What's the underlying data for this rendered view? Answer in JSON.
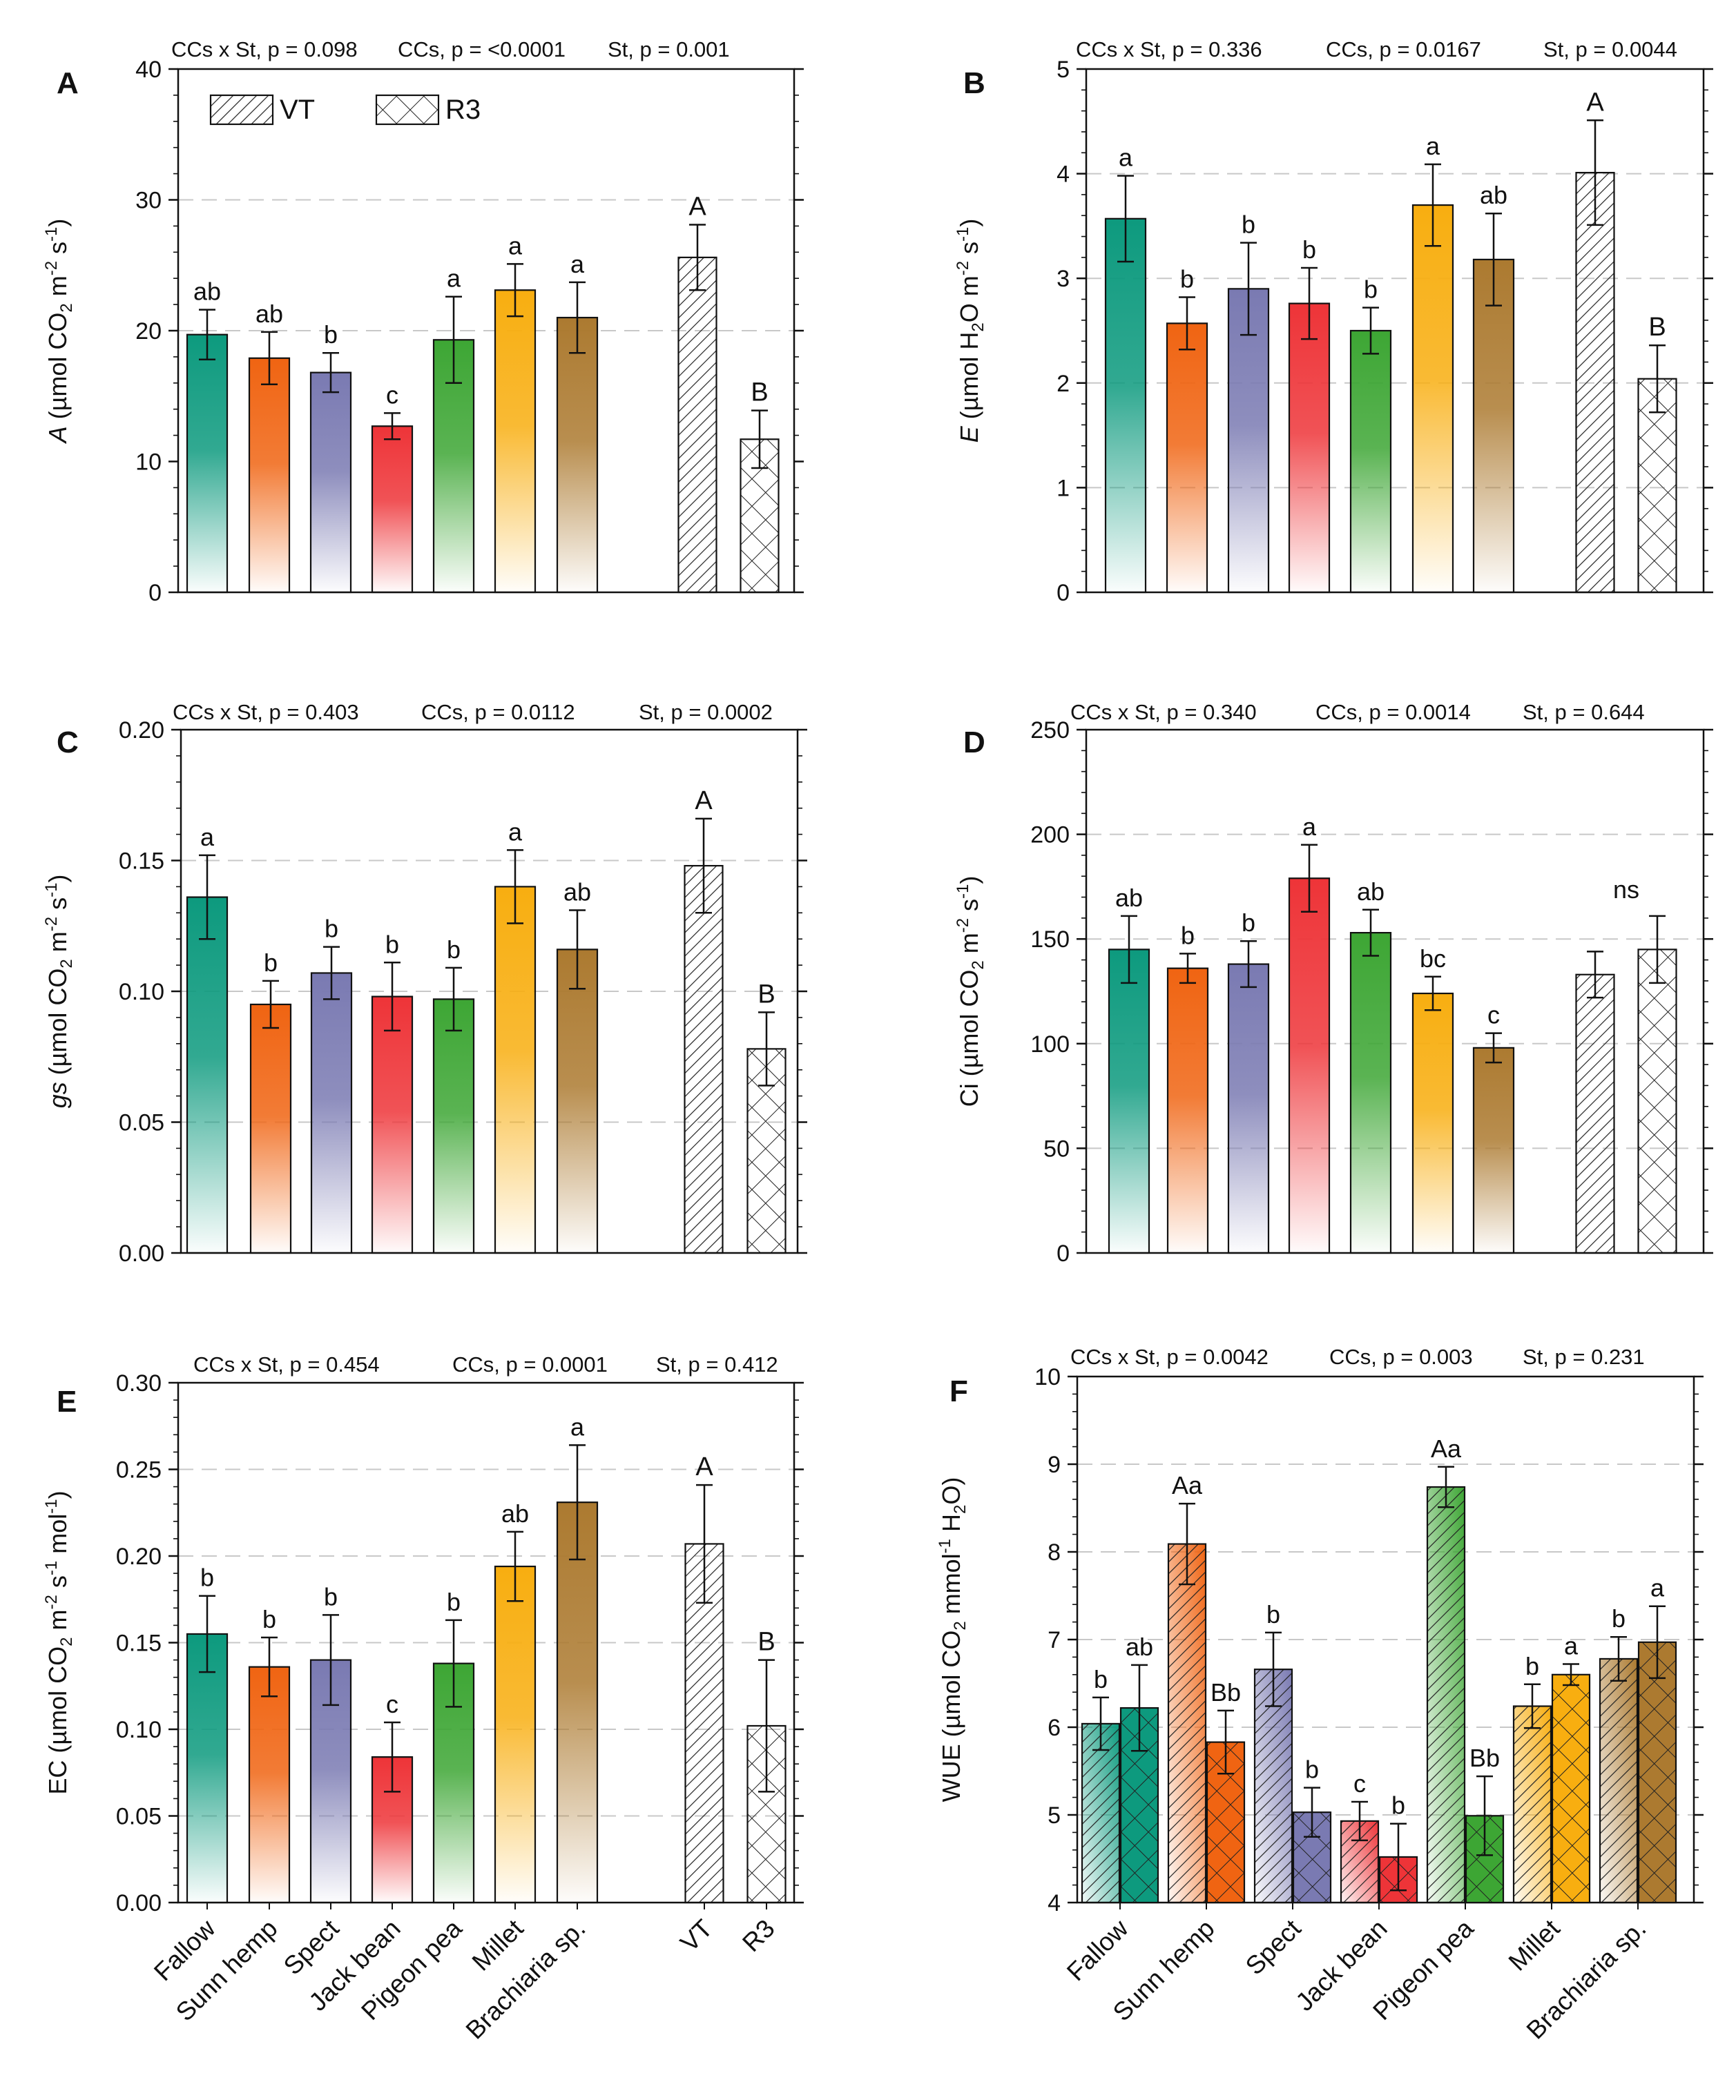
{
  "colors": {
    "Fallow": "#0d9a7e",
    "Sunn hemp": "#f06412",
    "Spect": "#7a7ab2",
    "Jack bean": "#ee3438",
    "Pigeon pea": "#3da634",
    "Millet": "#f8ae10",
    "Brachiaria sp.": "#ac7a30"
  },
  "chart_data": [
    {
      "panel": "A",
      "type": "bar",
      "stats": [
        "CCs x St, p = 0.098",
        "CCs, p = <0.0001",
        "St, p = 0.001"
      ],
      "ylabel_parts": [
        {
          "t": "A",
          "i": true
        },
        {
          "t": " (µmol CO"
        },
        {
          "t": "2",
          "sub": true
        },
        {
          "t": " m"
        },
        {
          "t": "-2",
          "sup": true
        },
        {
          "t": " s"
        },
        {
          "t": "-1",
          "sup": true
        },
        {
          "t": ")"
        }
      ],
      "ylim": [
        0,
        40
      ],
      "yticks": [
        0,
        10,
        20,
        30,
        40
      ],
      "yticklabels": [
        "0",
        "10",
        "20",
        "30",
        "40"
      ],
      "grid": [
        20,
        30
      ],
      "legend": [
        {
          "label": "VT",
          "pattern": "hatch"
        },
        {
          "label": "R3",
          "pattern": "cross"
        }
      ],
      "categories": [
        "Fallow",
        "Sunn hemp",
        "Spect",
        "Jack bean",
        "Pigeon pea",
        "Millet",
        "Brachiaria sp."
      ],
      "values": [
        19.7,
        17.9,
        16.8,
        12.7,
        19.3,
        23.1,
        21.0
      ],
      "errors": [
        1.9,
        2.0,
        1.5,
        1.0,
        3.3,
        2.0,
        2.7
      ],
      "letters": [
        "ab",
        "ab",
        "b",
        "c",
        "a",
        "a",
        "a"
      ],
      "stage_labels": [
        "VT",
        "R3"
      ],
      "stage_values": [
        25.6,
        11.7
      ],
      "stage_errors": [
        2.5,
        2.2
      ],
      "stage_letters": [
        "A",
        "B"
      ]
    },
    {
      "panel": "B",
      "type": "bar",
      "stats": [
        "CCs x St, p = 0.336",
        "CCs, p = 0.0167",
        "St, p = 0.0044"
      ],
      "ylabel_parts": [
        {
          "t": "E",
          "i": true
        },
        {
          "t": " (µmol H"
        },
        {
          "t": "2",
          "sub": true
        },
        {
          "t": "O m"
        },
        {
          "t": "-2",
          "sup": true
        },
        {
          "t": " s"
        },
        {
          "t": "-1",
          "sup": true
        },
        {
          "t": ")"
        }
      ],
      "ylim": [
        0,
        5
      ],
      "yticks": [
        0,
        1,
        2,
        3,
        4,
        5
      ],
      "yticklabels": [
        "0",
        "1",
        "2",
        "3",
        "4",
        "5"
      ],
      "grid": [
        1,
        2,
        3,
        4
      ],
      "categories": [
        "Fallow",
        "Sunn hemp",
        "Spect",
        "Jack bean",
        "Pigeon pea",
        "Millet",
        "Brachiaria sp."
      ],
      "values": [
        3.57,
        2.57,
        2.9,
        2.76,
        2.5,
        3.7,
        3.18
      ],
      "errors": [
        0.41,
        0.25,
        0.44,
        0.34,
        0.22,
        0.39,
        0.44
      ],
      "letters": [
        "a",
        "b",
        "b",
        "b",
        "b",
        "a",
        "ab"
      ],
      "stage_labels": [
        "VT",
        "R3"
      ],
      "stage_values": [
        4.01,
        2.04
      ],
      "stage_errors": [
        0.5,
        0.32
      ],
      "stage_letters": [
        "A",
        "B"
      ]
    },
    {
      "panel": "C",
      "type": "bar",
      "stats": [
        "CCs x St, p = 0.403",
        "CCs, p = 0.0112",
        "St, p = 0.0002"
      ],
      "ylabel_parts": [
        {
          "t": "gs",
          "i": true
        },
        {
          "t": " (µmol CO"
        },
        {
          "t": "2",
          "sub": true
        },
        {
          "t": " m"
        },
        {
          "t": "-2",
          "sup": true
        },
        {
          "t": " s"
        },
        {
          "t": "-1",
          "sup": true
        },
        {
          "t": ")"
        }
      ],
      "ylim": [
        0,
        0.2
      ],
      "yticks": [
        0,
        0.05,
        0.1,
        0.15,
        0.2
      ],
      "yticklabels": [
        "0.00",
        "0.05",
        "0.10",
        "0.15",
        "0.20"
      ],
      "grid": [
        0.05,
        0.1,
        0.15
      ],
      "categories": [
        "Fallow",
        "Sunn hemp",
        "Spect",
        "Jack bean",
        "Pigeon pea",
        "Millet",
        "Brachiaria sp."
      ],
      "values": [
        0.136,
        0.095,
        0.107,
        0.098,
        0.097,
        0.14,
        0.116
      ],
      "errors": [
        0.016,
        0.009,
        0.01,
        0.013,
        0.012,
        0.014,
        0.015
      ],
      "letters": [
        "a",
        "b",
        "b",
        "b",
        "b",
        "a",
        "ab"
      ],
      "stage_labels": [
        "VT",
        "R3"
      ],
      "stage_values": [
        0.148,
        0.078
      ],
      "stage_errors": [
        0.018,
        0.014
      ],
      "stage_letters": [
        "A",
        "B"
      ]
    },
    {
      "panel": "D",
      "type": "bar",
      "stats": [
        "CCs x St, p = 0.340",
        "CCs, p = 0.0014",
        "St, p = 0.644"
      ],
      "ylabel_parts": [
        {
          "t": "Ci (µmol CO"
        },
        {
          "t": "2",
          "sub": true
        },
        {
          "t": " m"
        },
        {
          "t": "-2",
          "sup": true
        },
        {
          "t": " s"
        },
        {
          "t": "-1",
          "sup": true
        },
        {
          "t": ")"
        }
      ],
      "ylim": [
        0,
        250
      ],
      "yticks": [
        0,
        50,
        100,
        150,
        200,
        250
      ],
      "yticklabels": [
        "0",
        "50",
        "100",
        "150",
        "200",
        "250"
      ],
      "grid": [
        50,
        100,
        150,
        200
      ],
      "categories": [
        "Fallow",
        "Sunn hemp",
        "Spect",
        "Jack bean",
        "Pigeon pea",
        "Millet",
        "Brachiaria sp."
      ],
      "values": [
        145,
        136,
        138,
        179,
        153,
        124,
        98
      ],
      "errors": [
        16,
        7,
        11,
        16,
        11,
        8,
        7
      ],
      "letters": [
        "ab",
        "b",
        "b",
        "a",
        "ab",
        "bc",
        "c"
      ],
      "stage_labels": [
        "VT",
        "R3"
      ],
      "stage_values": [
        133,
        145
      ],
      "stage_errors": [
        11,
        16
      ],
      "stage_letters": [
        "",
        ""
      ],
      "stage_shared_letter": "ns"
    },
    {
      "panel": "E",
      "type": "bar",
      "stats": [
        "CCs x St, p = 0.454",
        "CCs, p = 0.0001",
        "St, p = 0.412"
      ],
      "ylabel_parts": [
        {
          "t": "EC (µmol CO"
        },
        {
          "t": "2",
          "sub": true
        },
        {
          "t": " m"
        },
        {
          "t": "-2",
          "sup": true
        },
        {
          "t": " s"
        },
        {
          "t": "-1",
          "sup": true
        },
        {
          "t": " mol"
        },
        {
          "t": "-1",
          "sup": true
        },
        {
          "t": ")"
        }
      ],
      "ylim": [
        0,
        0.3
      ],
      "yticks": [
        0,
        0.05,
        0.1,
        0.15,
        0.2,
        0.25,
        0.3
      ],
      "yticklabels": [
        "0.00",
        "0.05",
        "0.10",
        "0.15",
        "0.20",
        "0.25",
        "0.30"
      ],
      "grid": [
        0.05,
        0.1,
        0.15,
        0.2,
        0.25
      ],
      "categories": [
        "Fallow",
        "Sunn hemp",
        "Spect",
        "Jack bean",
        "Pigeon pea",
        "Millet",
        "Brachiaria sp."
      ],
      "values": [
        0.155,
        0.136,
        0.14,
        0.084,
        0.138,
        0.194,
        0.231
      ],
      "errors": [
        0.022,
        0.017,
        0.026,
        0.02,
        0.025,
        0.02,
        0.033
      ],
      "letters": [
        "b",
        "b",
        "b",
        "c",
        "b",
        "ab",
        "a"
      ],
      "stage_labels": [
        "VT",
        "R3"
      ],
      "stage_values": [
        0.207,
        0.102
      ],
      "stage_errors": [
        0.034,
        0.038
      ],
      "stage_letters": [
        "A",
        "B"
      ],
      "xticklabels": [
        "Fallow",
        "Sunn hemp",
        "Spect",
        "Jack bean",
        "Pigeon pea",
        "Millet",
        "Brachiaria sp.",
        "VT",
        "R3"
      ]
    },
    {
      "panel": "F",
      "type": "grouped-bar",
      "stats": [
        "CCs x St, p = 0.0042",
        "CCs, p = 0.003",
        "St, p = 0.231"
      ],
      "ylabel_parts": [
        {
          "t": "WUE (µmol CO"
        },
        {
          "t": "2",
          "sub": true
        },
        {
          "t": " mmol"
        },
        {
          "t": "-1",
          "sup": true
        },
        {
          "t": " H"
        },
        {
          "t": "2",
          "sub": true
        },
        {
          "t": "O)"
        }
      ],
      "ylim": [
        4,
        10
      ],
      "yticks": [
        4,
        5,
        6,
        7,
        8,
        9,
        10
      ],
      "yticklabels": [
        "4",
        "5",
        "6",
        "7",
        "8",
        "9",
        "10"
      ],
      "grid": [
        5,
        6,
        7,
        8,
        9
      ],
      "categories": [
        "Fallow",
        "Sunn hemp",
        "Spect",
        "Jack bean",
        "Pigeon pea",
        "Millet",
        "Brachiaria sp."
      ],
      "series": [
        {
          "name": "VT",
          "pattern": "hatch",
          "values": [
            6.04,
            8.09,
            6.66,
            4.93,
            8.74,
            6.24,
            6.78
          ],
          "errors": [
            0.3,
            0.46,
            0.42,
            0.22,
            0.23,
            0.25,
            0.25
          ],
          "letters": [
            "b",
            "Aa",
            "b",
            "c",
            "Aa",
            "b",
            "b"
          ]
        },
        {
          "name": "R3",
          "pattern": "cross",
          "values": [
            6.22,
            5.83,
            5.03,
            4.52,
            4.99,
            6.6,
            6.97
          ],
          "errors": [
            0.49,
            0.36,
            0.28,
            0.38,
            0.45,
            0.12,
            0.41
          ],
          "letters": [
            "ab",
            "Bb",
            "b",
            "b",
            "Bb",
            "a",
            "a"
          ]
        }
      ],
      "xticklabels": [
        "Fallow",
        "Sunn hemp",
        "Spect",
        "Jack bean",
        "Pigeon pea",
        "Millet",
        "Brachiaria sp."
      ]
    }
  ]
}
